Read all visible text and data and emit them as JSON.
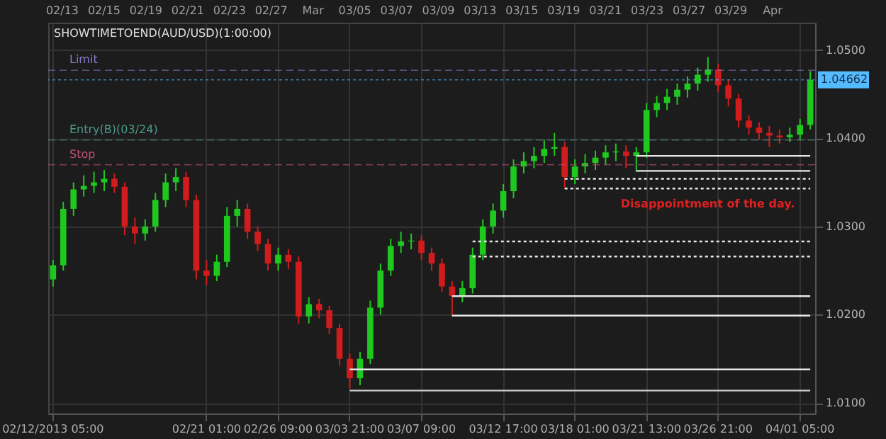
{
  "chart_data": {
    "type": "candlestick",
    "title": "SHOWTIMETOEND(AUD/USD)(1:00:00)",
    "categories": [
      "02/12/2013 05:00",
      null,
      null,
      null,
      null,
      null,
      null,
      null,
      null,
      null,
      null,
      null,
      null,
      null,
      null,
      "02/21 01:00",
      null,
      null,
      null,
      null,
      null,
      null,
      "02/26 09:00",
      null,
      null,
      null,
      null,
      null,
      null,
      "03/03 21:00",
      null,
      null,
      null,
      null,
      null,
      null,
      "03/07 09:00",
      null,
      null,
      null,
      null,
      null,
      null,
      null,
      "03/12 17:00",
      null,
      null,
      null,
      null,
      null,
      null,
      "03/18 01:00",
      null,
      null,
      null,
      null,
      null,
      null,
      "03/21 13:00",
      null,
      null,
      null,
      null,
      null,
      null,
      "03/26 21:00",
      null,
      null,
      null,
      null,
      null,
      null,
      null,
      "04/01 05:00",
      null
    ],
    "ohlc": [
      [
        1.024,
        1.0262,
        1.0232,
        1.0256
      ],
      [
        1.0256,
        1.0328,
        1.025,
        1.032
      ],
      [
        1.032,
        1.035,
        1.0312,
        1.0342
      ],
      [
        1.0342,
        1.0358,
        1.0334,
        1.0346
      ],
      [
        1.0346,
        1.0362,
        1.0338,
        1.035
      ],
      [
        1.035,
        1.0364,
        1.034,
        1.0354
      ],
      [
        1.0354,
        1.036,
        1.0338,
        1.0345
      ],
      [
        1.0345,
        1.035,
        1.029,
        1.03
      ],
      [
        1.03,
        1.031,
        1.028,
        1.0292
      ],
      [
        1.0292,
        1.0308,
        1.0284,
        1.03
      ],
      [
        1.03,
        1.0338,
        1.0294,
        1.033
      ],
      [
        1.033,
        1.036,
        1.0322,
        1.035
      ],
      [
        1.035,
        1.0366,
        1.034,
        1.0356
      ],
      [
        1.0356,
        1.0362,
        1.0322,
        1.033
      ],
      [
        1.033,
        1.0336,
        1.024,
        1.025
      ],
      [
        1.025,
        1.0262,
        1.0234,
        1.0244
      ],
      [
        1.0244,
        1.0268,
        1.0238,
        1.026
      ],
      [
        1.026,
        1.0322,
        1.0254,
        1.0312
      ],
      [
        1.0312,
        1.033,
        1.03,
        1.032
      ],
      [
        1.032,
        1.0326,
        1.0286,
        1.0294
      ],
      [
        1.0294,
        1.03,
        1.0272,
        1.028
      ],
      [
        1.028,
        1.0286,
        1.025,
        1.0258
      ],
      [
        1.0258,
        1.0276,
        1.025,
        1.0268
      ],
      [
        1.0268,
        1.0274,
        1.0252,
        1.026
      ],
      [
        1.026,
        1.0266,
        1.019,
        1.0198
      ],
      [
        1.0198,
        1.022,
        1.019,
        1.0212
      ],
      [
        1.0212,
        1.0218,
        1.0196,
        1.0205
      ],
      [
        1.0205,
        1.021,
        1.0178,
        1.0185
      ],
      [
        1.0185,
        1.019,
        1.0142,
        1.015
      ],
      [
        1.015,
        1.0156,
        1.0116,
        1.0128
      ],
      [
        1.0128,
        1.0158,
        1.012,
        1.015
      ],
      [
        1.015,
        1.0216,
        1.0144,
        1.0208
      ],
      [
        1.0208,
        1.0258,
        1.02,
        1.025
      ],
      [
        1.025,
        1.0286,
        1.0244,
        1.0278
      ],
      [
        1.0278,
        1.0294,
        1.027,
        1.0283
      ],
      [
        1.0283,
        1.0292,
        1.0274,
        1.0284
      ],
      [
        1.0284,
        1.029,
        1.0262,
        1.027
      ],
      [
        1.027,
        1.0276,
        1.025,
        1.0258
      ],
      [
        1.0258,
        1.0264,
        1.0226,
        1.0232
      ],
      [
        1.0232,
        1.0238,
        1.0198,
        1.0221
      ],
      [
        1.0221,
        1.0238,
        1.0214,
        1.023
      ],
      [
        1.023,
        1.0276,
        1.0224,
        1.0268
      ],
      [
        1.0268,
        1.0308,
        1.0262,
        1.03
      ],
      [
        1.03,
        1.0326,
        1.0292,
        1.0318
      ],
      [
        1.0318,
        1.0348,
        1.031,
        1.034
      ],
      [
        1.034,
        1.0376,
        1.0332,
        1.0368
      ],
      [
        1.0368,
        1.0384,
        1.036,
        1.0374
      ],
      [
        1.0374,
        1.039,
        1.0366,
        1.038
      ],
      [
        1.038,
        1.0398,
        1.0372,
        1.0388
      ],
      [
        1.0388,
        1.0406,
        1.038,
        1.039
      ],
      [
        1.039,
        1.0396,
        1.0344,
        1.0356
      ],
      [
        1.0356,
        1.0376,
        1.0348,
        1.0368
      ],
      [
        1.0368,
        1.0382,
        1.036,
        1.0372
      ],
      [
        1.0372,
        1.0386,
        1.0364,
        1.0378
      ],
      [
        1.0378,
        1.0392,
        1.037,
        1.0384
      ],
      [
        1.0384,
        1.0394,
        1.0374,
        1.0385
      ],
      [
        1.0385,
        1.0392,
        1.0366,
        1.038
      ],
      [
        1.038,
        1.039,
        1.0362,
        1.0384
      ],
      [
        1.0384,
        1.044,
        1.0378,
        1.0432
      ],
      [
        1.0432,
        1.0448,
        1.0424,
        1.044
      ],
      [
        1.044,
        1.0456,
        1.0432,
        1.0447
      ],
      [
        1.0447,
        1.0462,
        1.0438,
        1.0455
      ],
      [
        1.0455,
        1.047,
        1.0446,
        1.0462
      ],
      [
        1.0462,
        1.048,
        1.0454,
        1.0472
      ],
      [
        1.0472,
        1.0492,
        1.0464,
        1.0478
      ],
      [
        1.0478,
        1.0484,
        1.0452,
        1.046
      ],
      [
        1.046,
        1.0466,
        1.0436,
        1.0445
      ],
      [
        1.0445,
        1.045,
        1.0412,
        1.042
      ],
      [
        1.042,
        1.0426,
        1.0404,
        1.0412
      ],
      [
        1.0412,
        1.0418,
        1.0398,
        1.0406
      ],
      [
        1.0406,
        1.0414,
        1.039,
        1.0403
      ],
      [
        1.0403,
        1.041,
        1.0394,
        1.0401
      ],
      [
        1.0401,
        1.0412,
        1.0396,
        1.0404
      ],
      [
        1.0404,
        1.0422,
        1.0398,
        1.0415
      ],
      [
        1.0415,
        1.0476,
        1.041,
        1.0466
      ]
    ],
    "colors": [
      "#1ec81e",
      "#1ec81e",
      "#1ec81e",
      "#1ec81e",
      "#1ec81e",
      "#1ec81e",
      "#d01c1c",
      "#d01c1c",
      "#d01c1c",
      "#1ec81e",
      "#1ec81e",
      "#1ec81e",
      "#1ec81e",
      "#d01c1c",
      "#d01c1c",
      "#d01c1c",
      "#1ec81e",
      "#1ec81e",
      "#1ec81e",
      "#d01c1c",
      "#d01c1c",
      "#d01c1c",
      "#1ec81e",
      "#d01c1c",
      "#d01c1c",
      "#1ec81e",
      "#d01c1c",
      "#d01c1c",
      "#d01c1c",
      "#d01c1c",
      "#1ec81e",
      "#1ec81e",
      "#1ec81e",
      "#1ec81e",
      "#1ec81e",
      "#1ec81e",
      "#d01c1c",
      "#d01c1c",
      "#d01c1c",
      "#d01c1c",
      "#1ec81e",
      "#1ec81e",
      "#1ec81e",
      "#1ec81e",
      "#1ec81e",
      "#1ec81e",
      "#1ec81e",
      "#1ec81e",
      "#1ec81e",
      "#1ec81e",
      "#d01c1c",
      "#1ec81e",
      "#1ec81e",
      "#1ec81e",
      "#1ec81e",
      "#1ec81e",
      "#d01c1c",
      "#1ec81e",
      "#1ec81e",
      "#1ec81e",
      "#1ec81e",
      "#1ec81e",
      "#1ec81e",
      "#1ec81e",
      "#1ec81e",
      "#d01c1c",
      "#d01c1c",
      "#d01c1c",
      "#d01c1c",
      "#d01c1c",
      "#d01c1c",
      "#d01c1c",
      "#1ec81e",
      "#1ec81e",
      "#1ec81e"
    ],
    "series": [
      {
        "type": "line",
        "color": "#e8e8e8",
        "line_style": "solid",
        "values": [
          null,
          null,
          null,
          null,
          null,
          null,
          null,
          null,
          null,
          null,
          null,
          null,
          null,
          null,
          null,
          null,
          null,
          null,
          null,
          null,
          null,
          null,
          null,
          null,
          null,
          null,
          null,
          null,
          null,
          null,
          null,
          null,
          null,
          null,
          null,
          null,
          null,
          null,
          null,
          null,
          null,
          null,
          null,
          null,
          null,
          null,
          null,
          null,
          null,
          null,
          null,
          null,
          null,
          null,
          null,
          null,
          null,
          1.038,
          1.038,
          1.038,
          1.038,
          1.038,
          1.038,
          1.038,
          1.038,
          1.038,
          1.038,
          1.038,
          1.038,
          1.038,
          1.038,
          1.038,
          1.038,
          1.038,
          1.038
        ]
      },
      {
        "type": "line",
        "color": "#e8e8e8",
        "line_style": "solid",
        "values": [
          null,
          null,
          null,
          null,
          null,
          null,
          null,
          null,
          null,
          null,
          null,
          null,
          null,
          null,
          null,
          null,
          null,
          null,
          null,
          null,
          null,
          null,
          null,
          null,
          null,
          null,
          null,
          null,
          null,
          null,
          null,
          null,
          null,
          null,
          null,
          null,
          null,
          null,
          null,
          null,
          null,
          null,
          null,
          null,
          null,
          null,
          null,
          null,
          null,
          null,
          null,
          null,
          null,
          null,
          null,
          null,
          null,
          1.0363,
          1.0363,
          1.0363,
          1.0363,
          1.0363,
          1.0363,
          1.0363,
          1.0363,
          1.0363,
          1.0363,
          1.0363,
          1.0363,
          1.0363,
          1.0363,
          1.0363,
          1.0363,
          1.0363,
          1.0363
        ]
      },
      {
        "type": "line",
        "color": "#e8e8e8",
        "line_style": "dotted",
        "values": [
          null,
          null,
          null,
          null,
          null,
          null,
          null,
          null,
          null,
          null,
          null,
          null,
          null,
          null,
          null,
          null,
          null,
          null,
          null,
          null,
          null,
          null,
          null,
          null,
          null,
          null,
          null,
          null,
          null,
          null,
          null,
          null,
          null,
          null,
          null,
          null,
          null,
          null,
          null,
          null,
          null,
          null,
          null,
          null,
          null,
          null,
          null,
          null,
          null,
          null,
          1.0354,
          1.0354,
          1.0354,
          1.0354,
          1.0354,
          1.0354,
          1.0354,
          1.0354,
          1.0354,
          1.0354,
          1.0354,
          1.0354,
          1.0354,
          1.0354,
          1.0354,
          1.0354,
          1.0354,
          1.0354,
          1.0354,
          1.0354,
          1.0354,
          1.0354,
          1.0354,
          1.0354,
          1.0354
        ]
      },
      {
        "type": "line",
        "color": "#e8e8e8",
        "line_style": "dotted",
        "values": [
          null,
          null,
          null,
          null,
          null,
          null,
          null,
          null,
          null,
          null,
          null,
          null,
          null,
          null,
          null,
          null,
          null,
          null,
          null,
          null,
          null,
          null,
          null,
          null,
          null,
          null,
          null,
          null,
          null,
          null,
          null,
          null,
          null,
          null,
          null,
          null,
          null,
          null,
          null,
          null,
          null,
          null,
          null,
          null,
          null,
          null,
          null,
          null,
          null,
          null,
          1.0343,
          1.0343,
          1.0343,
          1.0343,
          1.0343,
          1.0343,
          1.0343,
          1.0343,
          1.0343,
          1.0343,
          1.0343,
          1.0343,
          1.0343,
          1.0343,
          1.0343,
          1.0343,
          1.0343,
          1.0343,
          1.0343,
          1.0343,
          1.0343,
          1.0343,
          1.0343,
          1.0343,
          1.0343
        ]
      },
      {
        "type": "line",
        "color": "#e8e8e8",
        "line_style": "dotted",
        "values": [
          null,
          null,
          null,
          null,
          null,
          null,
          null,
          null,
          null,
          null,
          null,
          null,
          null,
          null,
          null,
          null,
          null,
          null,
          null,
          null,
          null,
          null,
          null,
          null,
          null,
          null,
          null,
          null,
          null,
          null,
          null,
          null,
          null,
          null,
          null,
          null,
          null,
          null,
          null,
          null,
          null,
          1.0283,
          1.0283,
          1.0283,
          1.0283,
          1.0283,
          1.0283,
          1.0283,
          1.0283,
          1.0283,
          1.0283,
          1.0283,
          1.0283,
          1.0283,
          1.0283,
          1.0283,
          1.0283,
          1.0283,
          1.0283,
          1.0283,
          1.0283,
          1.0283,
          1.0283,
          1.0283,
          1.0283,
          1.0283,
          1.0283,
          1.0283,
          1.0283,
          1.0283,
          1.0283,
          1.0283,
          1.0283,
          1.0283,
          1.0283
        ]
      },
      {
        "type": "line",
        "color": "#e8e8e8",
        "line_style": "dotted",
        "values": [
          null,
          null,
          null,
          null,
          null,
          null,
          null,
          null,
          null,
          null,
          null,
          null,
          null,
          null,
          null,
          null,
          null,
          null,
          null,
          null,
          null,
          null,
          null,
          null,
          null,
          null,
          null,
          null,
          null,
          null,
          null,
          null,
          null,
          null,
          null,
          null,
          null,
          null,
          null,
          null,
          null,
          1.0266,
          1.0266,
          1.0266,
          1.0266,
          1.0266,
          1.0266,
          1.0266,
          1.0266,
          1.0266,
          1.0266,
          1.0266,
          1.0266,
          1.0266,
          1.0266,
          1.0266,
          1.0266,
          1.0266,
          1.0266,
          1.0266,
          1.0266,
          1.0266,
          1.0266,
          1.0266,
          1.0266,
          1.0266,
          1.0266,
          1.0266,
          1.0266,
          1.0266,
          1.0266,
          1.0266,
          1.0266,
          1.0266,
          1.0266
        ]
      },
      {
        "type": "line",
        "color": "#e8e8e8",
        "line_style": "solid",
        "values": [
          null,
          null,
          null,
          null,
          null,
          null,
          null,
          null,
          null,
          null,
          null,
          null,
          null,
          null,
          null,
          null,
          null,
          null,
          null,
          null,
          null,
          null,
          null,
          null,
          null,
          null,
          null,
          null,
          null,
          null,
          null,
          null,
          null,
          null,
          null,
          null,
          null,
          null,
          null,
          1.0221,
          1.0221,
          1.0221,
          1.0221,
          1.0221,
          1.0221,
          1.0221,
          1.0221,
          1.0221,
          1.0221,
          1.0221,
          1.0221,
          1.0221,
          1.0221,
          1.0221,
          1.0221,
          1.0221,
          1.0221,
          1.0221,
          1.0221,
          1.0221,
          1.0221,
          1.0221,
          1.0221,
          1.0221,
          1.0221,
          1.0221,
          1.0221,
          1.0221,
          1.0221,
          1.0221,
          1.0221,
          1.0221,
          1.0221,
          1.0221,
          1.0221
        ]
      },
      {
        "type": "line",
        "color": "#e8e8e8",
        "line_style": "solid",
        "values": [
          null,
          null,
          null,
          null,
          null,
          null,
          null,
          null,
          null,
          null,
          null,
          null,
          null,
          null,
          null,
          null,
          null,
          null,
          null,
          null,
          null,
          null,
          null,
          null,
          null,
          null,
          null,
          null,
          null,
          null,
          null,
          null,
          null,
          null,
          null,
          null,
          null,
          null,
          null,
          1.0199,
          1.0199,
          1.0199,
          1.0199,
          1.0199,
          1.0199,
          1.0199,
          1.0199,
          1.0199,
          1.0199,
          1.0199,
          1.0199,
          1.0199,
          1.0199,
          1.0199,
          1.0199,
          1.0199,
          1.0199,
          1.0199,
          1.0199,
          1.0199,
          1.0199,
          1.0199,
          1.0199,
          1.0199,
          1.0199,
          1.0199,
          1.0199,
          1.0199,
          1.0199,
          1.0199,
          1.0199,
          1.0199,
          1.0199,
          1.0199,
          1.0199
        ]
      },
      {
        "type": "line",
        "color": "#e8e8e8",
        "line_style": "solid",
        "values": [
          null,
          null,
          null,
          null,
          null,
          null,
          null,
          null,
          null,
          null,
          null,
          null,
          null,
          null,
          null,
          null,
          null,
          null,
          null,
          null,
          null,
          null,
          null,
          null,
          null,
          null,
          null,
          null,
          null,
          1.0138,
          1.0138,
          1.0138,
          1.0138,
          1.0138,
          1.0138,
          1.0138,
          1.0138,
          1.0138,
          1.0138,
          1.0138,
          1.0138,
          1.0138,
          1.0138,
          1.0138,
          1.0138,
          1.0138,
          1.0138,
          1.0138,
          1.0138,
          1.0138,
          1.0138,
          1.0138,
          1.0138,
          1.0138,
          1.0138,
          1.0138,
          1.0138,
          1.0138,
          1.0138,
          1.0138,
          1.0138,
          1.0138,
          1.0138,
          1.0138,
          1.0138,
          1.0138,
          1.0138,
          1.0138,
          1.0138,
          1.0138,
          1.0138,
          1.0138,
          1.0138,
          1.0138,
          1.0138
        ]
      },
      {
        "type": "line",
        "color": "#c8c8c8",
        "line_style": "solid",
        "values": [
          null,
          null,
          null,
          null,
          null,
          null,
          null,
          null,
          null,
          null,
          null,
          null,
          null,
          null,
          null,
          null,
          null,
          null,
          null,
          null,
          null,
          null,
          null,
          null,
          null,
          null,
          null,
          null,
          null,
          1.0114,
          1.0114,
          1.0114,
          1.0114,
          1.0114,
          1.0114,
          1.0114,
          1.0114,
          1.0114,
          1.0114,
          1.0114,
          1.0114,
          1.0114,
          1.0114,
          1.0114,
          1.0114,
          1.0114,
          1.0114,
          1.0114,
          1.0114,
          1.0114,
          1.0114,
          1.0114,
          1.0114,
          1.0114,
          1.0114,
          1.0114,
          1.0114,
          1.0114,
          1.0114,
          1.0114,
          1.0114,
          1.0114,
          1.0114,
          1.0114,
          1.0114,
          1.0114,
          1.0114,
          1.0114,
          1.0114,
          1.0114,
          1.0114,
          1.0114,
          1.0114,
          1.0114,
          1.0114
        ]
      }
    ],
    "ylim": [
      1.0088,
      1.0531
    ],
    "yticks": [
      {
        "value": 1.01,
        "label": "1.0100"
      },
      {
        "value": 1.02,
        "label": "1.0200"
      },
      {
        "value": 1.03,
        "label": "1.0300"
      },
      {
        "value": 1.04,
        "label": "1.0400"
      },
      {
        "value": 1.05,
        "label": "1.0500"
      }
    ],
    "ref_lines": [
      {
        "axis": "y",
        "value": 1.0477,
        "label": "Limit",
        "color": "#8878c8",
        "line_style": "dashed"
      },
      {
        "axis": "y",
        "value": 1.0398,
        "label": "Entry(B)(03/24)",
        "color": "#4a9a88",
        "line_style": "dashed"
      },
      {
        "axis": "y",
        "value": 1.037,
        "label": "Stop",
        "color": "#c0507a",
        "line_style": "dashed"
      },
      {
        "axis": "y",
        "value": 1.04662,
        "label": "1.04662",
        "color": "#55bbff",
        "line_style": "dotted"
      }
    ],
    "annotations": [
      "02/13",
      "02/15",
      "02/19",
      "02/21",
      "02/23",
      "02/27",
      "Mar",
      "03/05",
      "03/07",
      "03/09",
      "03/13",
      "03/15",
      "03/19",
      "03/21",
      "03/23",
      "03/27",
      "03/29",
      "Apr",
      "Disappointment of the day."
    ],
    "grid": true
  }
}
